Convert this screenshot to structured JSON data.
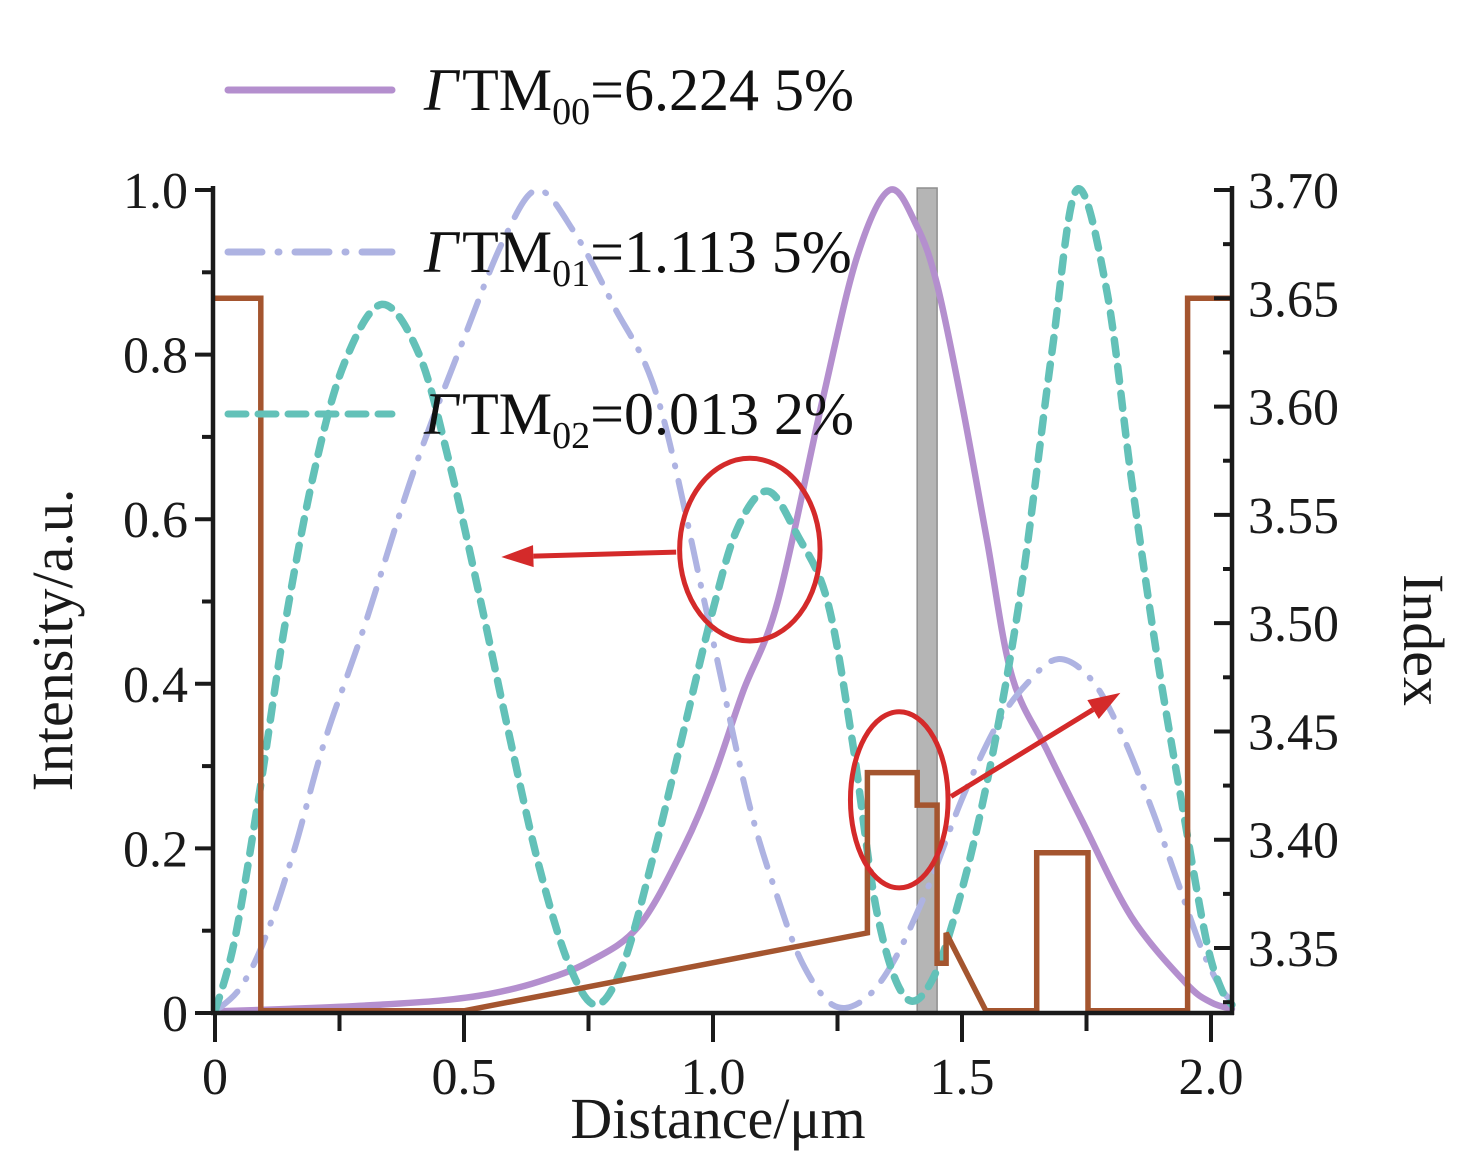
{
  "figure": {
    "background": "#ffffff"
  },
  "colors": {
    "tm00": "#b48fce",
    "tm01": "#aeb3e2",
    "tm02": "#63c1b8",
    "index_profile": "#a4552f",
    "annotation": "#d42a2a",
    "marker_band_fill": "#b5b5b5",
    "marker_band_edge": "#8f8f8f",
    "axis": "#1a1a1a"
  },
  "legend": {
    "items": [
      {
        "symbol": "Γ",
        "mode": "TM",
        "subscript": "00",
        "value": "=6.224 5%",
        "style": "solid",
        "color": "#b48fce"
      },
      {
        "symbol": "Γ",
        "mode": "TM",
        "subscript": "01",
        "value": "=1.113 5%",
        "style": "dash-dot",
        "color": "#aeb3e2"
      },
      {
        "symbol": "Γ",
        "mode": "TM",
        "subscript": "02",
        "value": "=0.013 2%",
        "style": "dashed",
        "color": "#63c1b8"
      }
    ]
  },
  "axes": {
    "x": {
      "label": "Distance/μm",
      "major": [
        [
          0,
          "0"
        ],
        [
          0.5,
          "0.5"
        ],
        [
          1.0,
          "1.0"
        ],
        [
          1.5,
          "1.5"
        ],
        [
          2.0,
          "2.0"
        ]
      ],
      "minor": [
        0.25,
        0.75,
        1.25,
        1.75
      ]
    },
    "y_left": {
      "label": "Intensity/a.u.",
      "major": [
        [
          0,
          "0"
        ],
        [
          0.2,
          "0.2"
        ],
        [
          0.4,
          "0.4"
        ],
        [
          0.6,
          "0.6"
        ],
        [
          0.8,
          "0.8"
        ],
        [
          1.0,
          "1.0"
        ]
      ],
      "minor": [
        0.1,
        0.3,
        0.5,
        0.7,
        0.9
      ]
    },
    "y_right": {
      "label": "Index",
      "major": [
        [
          3.35,
          "3.35"
        ],
        [
          3.4,
          "3.40"
        ],
        [
          3.45,
          "3.45"
        ],
        [
          3.5,
          "3.50"
        ],
        [
          3.55,
          "3.55"
        ],
        [
          3.6,
          "3.60"
        ],
        [
          3.65,
          "3.65"
        ],
        [
          3.7,
          "3.70"
        ]
      ],
      "minor": [
        3.325,
        3.375,
        3.425,
        3.475,
        3.525,
        3.575,
        3.625,
        3.675
      ]
    }
  },
  "chart_data": {
    "type": "line",
    "title": "",
    "xlabel": "Distance/μm",
    "ylabel_left": "Intensity/a.u.",
    "ylabel_right": "Index",
    "xlim": [
      0,
      2.042
    ],
    "ylim_left": [
      0,
      1.0
    ],
    "ylim_right": [
      3.32,
      3.7
    ],
    "grid": false,
    "legend_position": "top-left",
    "series": [
      {
        "name": "TM00 intensity",
        "legend": "ΓTM00=6.224 5%",
        "axis": "left",
        "style": "solid",
        "color": "#b48fce",
        "smooth": true,
        "points": [
          [
            0,
            0.002
          ],
          [
            0.15,
            0.005
          ],
          [
            0.3,
            0.009
          ],
          [
            0.45,
            0.015
          ],
          [
            0.55,
            0.023
          ],
          [
            0.65,
            0.038
          ],
          [
            0.75,
            0.062
          ],
          [
            0.85,
            0.105
          ],
          [
            0.94,
            0.2
          ],
          [
            1.0,
            0.285
          ],
          [
            1.06,
            0.39
          ],
          [
            1.13,
            0.5
          ],
          [
            1.22,
            0.745
          ],
          [
            1.29,
            0.92
          ],
          [
            1.355,
            1.0
          ],
          [
            1.41,
            0.955
          ],
          [
            1.45,
            0.885
          ],
          [
            1.5,
            0.74
          ],
          [
            1.55,
            0.575
          ],
          [
            1.6,
            0.41
          ],
          [
            1.67,
            0.32
          ],
          [
            1.74,
            0.235
          ],
          [
            1.84,
            0.117
          ],
          [
            1.95,
            0.036
          ],
          [
            2.0,
            0.013
          ],
          [
            2.042,
            0.005
          ]
        ]
      },
      {
        "name": "TM01 intensity",
        "legend": "ΓTM01=1.113 5%",
        "axis": "left",
        "style": "dash-dot",
        "color": "#aeb3e2",
        "smooth": true,
        "points": [
          [
            0,
            0.002
          ],
          [
            0.05,
            0.03
          ],
          [
            0.1,
            0.09
          ],
          [
            0.16,
            0.2
          ],
          [
            0.22,
            0.33
          ],
          [
            0.3,
            0.47
          ],
          [
            0.4,
            0.66
          ],
          [
            0.5,
            0.82
          ],
          [
            0.58,
            0.94
          ],
          [
            0.647,
            1.0
          ],
          [
            0.72,
            0.95
          ],
          [
            0.8,
            0.86
          ],
          [
            0.89,
            0.745
          ],
          [
            0.99,
            0.48
          ],
          [
            1.07,
            0.26
          ],
          [
            1.13,
            0.14
          ],
          [
            1.18,
            0.06
          ],
          [
            1.24,
            0.01
          ],
          [
            1.3,
            0.015
          ],
          [
            1.36,
            0.06
          ],
          [
            1.43,
            0.15
          ],
          [
            1.5,
            0.26
          ],
          [
            1.57,
            0.35
          ],
          [
            1.63,
            0.4
          ],
          [
            1.693,
            0.43
          ],
          [
            1.76,
            0.405
          ],
          [
            1.82,
            0.34
          ],
          [
            1.88,
            0.25
          ],
          [
            1.93,
            0.165
          ],
          [
            1.98,
            0.08
          ],
          [
            2.02,
            0.03
          ],
          [
            2.042,
            0.015
          ]
        ]
      },
      {
        "name": "TM02 intensity",
        "legend": "ΓTM02=0.013 2%",
        "axis": "left",
        "style": "dashed",
        "color": "#63c1b8",
        "smooth": true,
        "points": [
          [
            0,
            0.002
          ],
          [
            0.04,
            0.09
          ],
          [
            0.09,
            0.27
          ],
          [
            0.14,
            0.47
          ],
          [
            0.2,
            0.66
          ],
          [
            0.26,
            0.79
          ],
          [
            0.335,
            0.861
          ],
          [
            0.41,
            0.8
          ],
          [
            0.47,
            0.67
          ],
          [
            0.53,
            0.51
          ],
          [
            0.59,
            0.34
          ],
          [
            0.65,
            0.18
          ],
          [
            0.71,
            0.06
          ],
          [
            0.765,
            0.01
          ],
          [
            0.82,
            0.06
          ],
          [
            0.88,
            0.19
          ],
          [
            0.94,
            0.34
          ],
          [
            1.0,
            0.49
          ],
          [
            1.05,
            0.59
          ],
          [
            1.11,
            0.634
          ],
          [
            1.17,
            0.58
          ],
          [
            1.23,
            0.5
          ],
          [
            1.28,
            0.33
          ],
          [
            1.33,
            0.12
          ],
          [
            1.385,
            0.02
          ],
          [
            1.44,
            0.04
          ],
          [
            1.5,
            0.15
          ],
          [
            1.56,
            0.31
          ],
          [
            1.62,
            0.52
          ],
          [
            1.68,
            0.8
          ],
          [
            1.73,
            1.0
          ],
          [
            1.79,
            0.88
          ],
          [
            1.84,
            0.65
          ],
          [
            1.89,
            0.44
          ],
          [
            1.94,
            0.26
          ],
          [
            1.99,
            0.09
          ],
          [
            2.02,
            0.03
          ],
          [
            2.042,
            0.01
          ]
        ]
      },
      {
        "name": "refractive index profile",
        "axis": "right",
        "style": "step-solid",
        "color": "#a4552f",
        "smooth": false,
        "points": [
          [
            0,
            3.65
          ],
          [
            0.092,
            3.65
          ],
          [
            0.092,
            3.321
          ],
          [
            0.5,
            3.321
          ],
          [
            1.31,
            3.357
          ],
          [
            1.31,
            3.431
          ],
          [
            1.41,
            3.431
          ],
          [
            1.41,
            3.416
          ],
          [
            1.45,
            3.416
          ],
          [
            1.45,
            3.343
          ],
          [
            1.468,
            3.343
          ],
          [
            1.468,
            3.357
          ],
          [
            1.548,
            3.321
          ],
          [
            1.65,
            3.321
          ],
          [
            1.65,
            3.394
          ],
          [
            1.753,
            3.394
          ],
          [
            1.753,
            3.321
          ],
          [
            1.953,
            3.321
          ],
          [
            1.953,
            3.65
          ],
          [
            2.042,
            3.65
          ]
        ]
      }
    ],
    "marker_band": {
      "x0": 1.41,
      "x1": 1.45,
      "fill": "#b5b5b5",
      "edge": "#8f8f8f"
    },
    "annotations": {
      "color": "#d42a2a",
      "ellipses": [
        {
          "cx": 1.074,
          "cy": 0.563,
          "rx": 0.141,
          "ry": 0.111
        },
        {
          "cx": 1.374,
          "cy": 0.259,
          "rx": 0.098,
          "ry": 0.107
        }
      ],
      "arrows": [
        {
          "x1": 0.926,
          "y1": 0.56,
          "x2": 0.575,
          "y2": 0.554,
          "meaning": "points to intensity axis"
        },
        {
          "x1": 1.478,
          "y1": 0.263,
          "x2": 1.818,
          "y2": 0.389,
          "meaning": "points to index axis"
        }
      ]
    }
  }
}
